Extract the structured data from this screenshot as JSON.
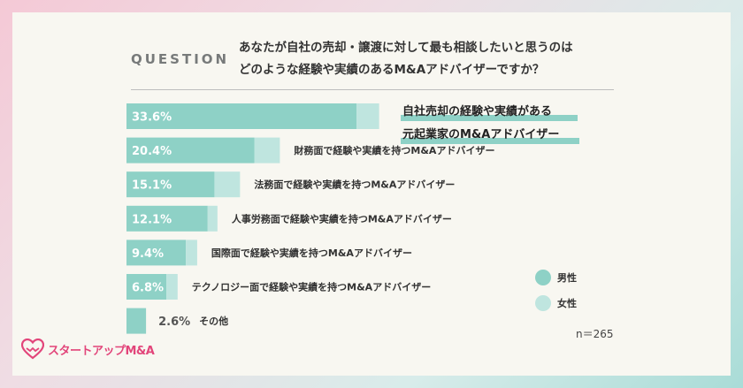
{
  "question": {
    "label": "QUESTION",
    "line1": "あなたが自社の売却・譲渡に対して最も相談したいと思うのは",
    "line2": "どのような経験や実績のあるM&Aアドバイザーですか？"
  },
  "colors": {
    "male": "#8ed1c6",
    "female": "#bfe5df",
    "highlight": "#8ed1c6"
  },
  "legend": {
    "male": "男性",
    "female": "女性"
  },
  "sample_size": "n＝265",
  "brand": {
    "name": "スタートアップM&A",
    "icon": "heart-handshake-icon"
  },
  "chart_data": {
    "type": "bar",
    "orientation": "horizontal",
    "stacked": true,
    "categories": [
      "自社売却の経験や実績がある元起業家のM&Aアドバイザー",
      "財務面で経験や実績を持つM&Aアドバイザー",
      "法務面で経験や実績を持つM&Aアドバイザー",
      "人事労務面で経験や実績を持つM&Aアドバイザー",
      "国際面で経験や実績を持つM&Aアドバイザー",
      "テクノロジー面で経験や実績を持つM&Aアドバイザー",
      "その他"
    ],
    "highlight_lines": [
      "自社売却の経験や実績がある",
      "元起業家のM&Aアドバイザー"
    ],
    "totals": [
      33.6,
      20.4,
      15.1,
      12.1,
      9.4,
      6.8,
      2.6
    ],
    "total_labels": [
      "33.6%",
      "20.4%",
      "15.1%",
      "12.1%",
      "9.4%",
      "6.8%",
      "2.6%"
    ],
    "series": [
      {
        "name": "男性",
        "values": [
          30.6,
          17.0,
          11.7,
          10.8,
          7.9,
          5.3,
          2.6
        ]
      },
      {
        "name": "女性",
        "values": [
          3.0,
          3.4,
          3.4,
          1.3,
          1.5,
          1.5,
          0.0
        ]
      }
    ],
    "xlim": [
      0,
      36
    ]
  }
}
